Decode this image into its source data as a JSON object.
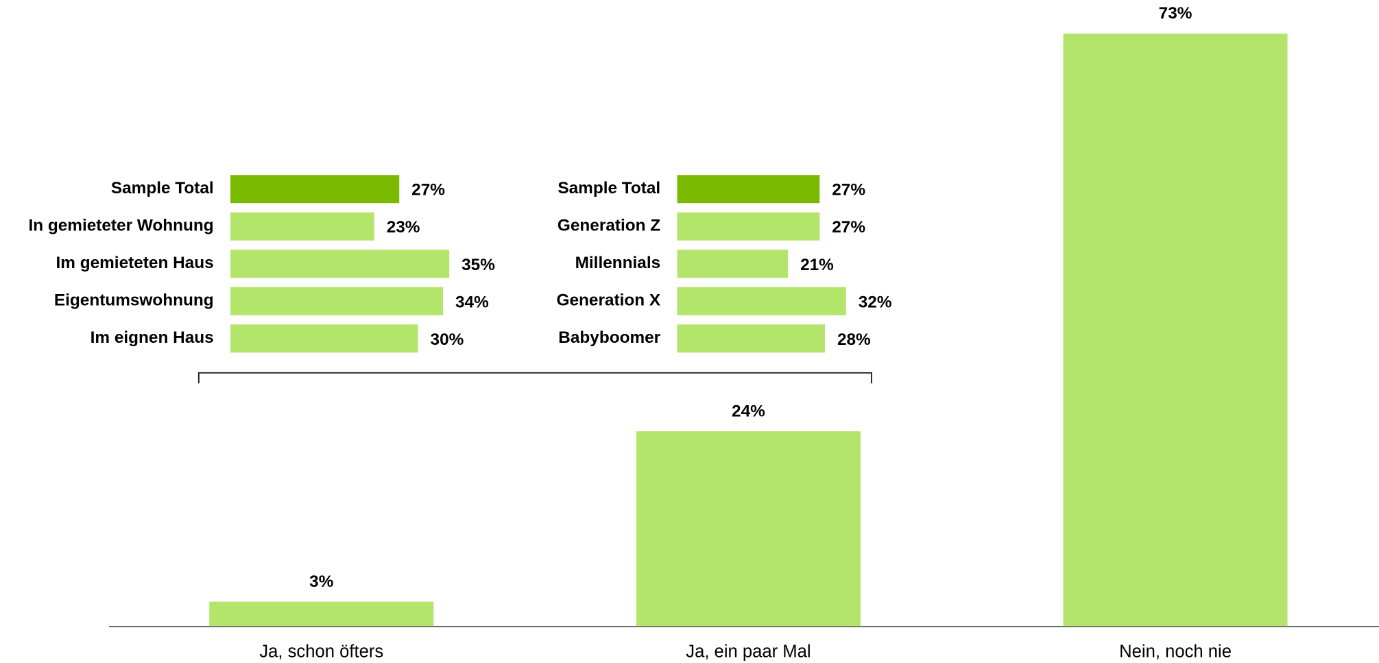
{
  "chart_data": [
    {
      "type": "bar",
      "categories": [
        "Ja, schon öfters",
        "Ja, ein paar Mal",
        "Nein, noch nie"
      ],
      "values": [
        3,
        24,
        73
      ],
      "value_labels": [
        "3%",
        "24%",
        "73%"
      ],
      "color": "#b3e56b"
    },
    {
      "type": "hbar",
      "categories": [
        "Sample Total",
        "In gemieteter Wohnung",
        "Im gemieteten Haus",
        "Eigentumswohnung",
        "Im eignen Haus"
      ],
      "values": [
        27,
        23,
        35,
        34,
        30
      ],
      "value_labels": [
        "27%",
        "23%",
        "35%",
        "34%",
        "30%"
      ],
      "colors": [
        "#7aba00",
        "#b3e56b",
        "#b3e56b",
        "#b3e56b",
        "#b3e56b"
      ]
    },
    {
      "type": "hbar",
      "categories": [
        "Sample Total",
        "Generation Z",
        "Millennials",
        "Generation X",
        "Babyboomer"
      ],
      "values": [
        27,
        27,
        21,
        32,
        28
      ],
      "value_labels": [
        "27%",
        "27%",
        "21%",
        "32%",
        "28%"
      ],
      "colors": [
        "#7aba00",
        "#b3e56b",
        "#b3e56b",
        "#b3e56b",
        "#b3e56b"
      ]
    }
  ]
}
